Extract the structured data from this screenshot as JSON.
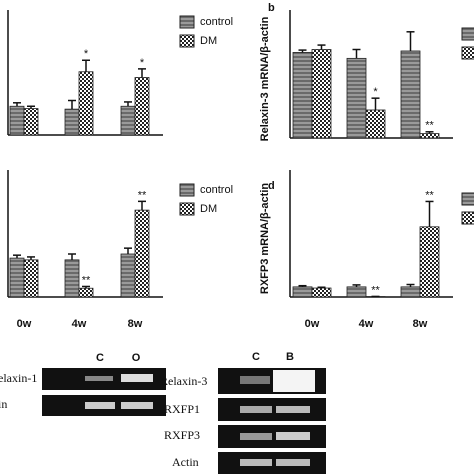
{
  "chart_data": [
    {
      "type": "bar",
      "categories": [
        null,
        null,
        null
      ],
      "ylim": [
        0,
        4
      ],
      "series": [
        {
          "name": "control",
          "values": [
            1.0,
            0.9,
            1.0
          ],
          "errors": [
            0.12,
            0.3,
            0.15
          ],
          "marks": [
            null,
            null,
            null
          ]
        },
        {
          "name": "DM",
          "values": [
            0.92,
            2.2,
            2.0
          ],
          "errors": [
            0.08,
            0.4,
            0.3
          ],
          "marks": [
            null,
            "*",
            "*"
          ]
        }
      ]
    },
    {
      "type": "bar",
      "panel_label": "b",
      "y_label": "Relaxin-3 mRNA/β-actin",
      "categories": [
        null,
        null,
        null
      ],
      "ylim": [
        0,
        4
      ],
      "series": [
        {
          "values": [
            2.9,
            2.7,
            2.95
          ],
          "errors": [
            0.08,
            0.3,
            0.65
          ],
          "marks": [
            null,
            null,
            null
          ]
        },
        {
          "values": [
            3.0,
            0.95,
            0.15
          ],
          "errors": [
            0.15,
            0.4,
            0.06
          ],
          "marks": [
            null,
            "*",
            "**"
          ]
        }
      ]
    },
    {
      "type": "bar",
      "categories": [
        "0w",
        "4w",
        "8w"
      ],
      "ylim": [
        0,
        4
      ],
      "series": [
        {
          "name": "control",
          "values": [
            1.33,
            1.27,
            1.47
          ],
          "errors": [
            0.1,
            0.2,
            0.2
          ],
          "marks": [
            null,
            null,
            null
          ]
        },
        {
          "name": "DM",
          "values": [
            1.27,
            0.3,
            2.97
          ],
          "errors": [
            0.1,
            0.06,
            0.3
          ],
          "marks": [
            null,
            "**",
            "**"
          ]
        }
      ]
    },
    {
      "type": "bar",
      "panel_label": "d",
      "y_label": "RXFP3 mRNA/β-actin",
      "categories": [
        "0w",
        "4w",
        "8w"
      ],
      "ylim": [
        0,
        30
      ],
      "series": [
        {
          "values": [
            2.6,
            2.6,
            2.6
          ],
          "errors": [
            0.3,
            0.5,
            0.6
          ],
          "marks": [
            null,
            null,
            null
          ]
        },
        {
          "values": [
            2.3,
            0.1,
            18.0
          ],
          "errors": [
            0.2,
            0.05,
            6.5
          ],
          "marks": [
            null,
            "**",
            "**"
          ]
        }
      ]
    }
  ],
  "gels": {
    "left": {
      "columns": [
        "C",
        "O"
      ],
      "rows": [
        "elaxin-1",
        "in"
      ]
    },
    "right": {
      "columns": [
        "C",
        "B"
      ],
      "rows": [
        "Relaxin-3",
        "RXFP1",
        "RXFP3",
        "Actin"
      ]
    }
  }
}
